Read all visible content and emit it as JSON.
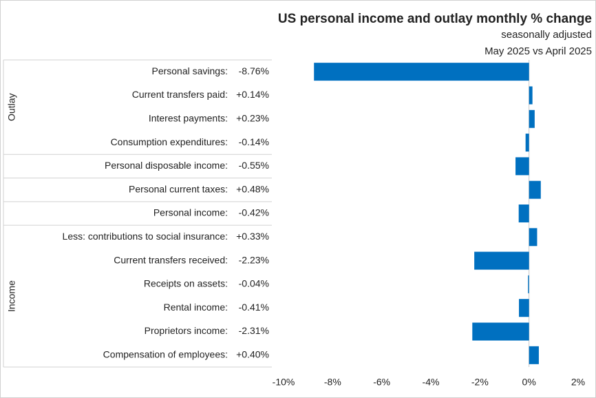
{
  "chart_data": {
    "type": "hbar",
    "title": "US personal income and outlay monthly % change",
    "subtitle": "seasonally adjusted",
    "period": "May 2025 vs April 2025",
    "categories": [
      "Personal savings:",
      "Current transfers paid:",
      "Interest payments:",
      "Consumption expenditures:",
      "Personal disposable income:",
      "Personal current taxes:",
      "Personal income:",
      "Less: contributions to social insurance:",
      "Current transfers received:",
      "Receipts on assets:",
      "Rental income:",
      "Proprietors income:",
      "Compensation of employees:"
    ],
    "groups": [
      "Outlay",
      "Outlay",
      "Outlay",
      "Outlay",
      null,
      null,
      null,
      "Income",
      "Income",
      "Income",
      "Income",
      "Income",
      "Income"
    ],
    "values": [
      -8.76,
      0.14,
      0.23,
      -0.14,
      -0.55,
      0.48,
      -0.42,
      0.33,
      -2.23,
      -0.04,
      -0.41,
      -2.31,
      0.4
    ],
    "value_labels": [
      "-8.76%",
      "+0.14%",
      "+0.23%",
      "-0.14%",
      "-0.55%",
      "+0.48%",
      "-0.42%",
      "+0.33%",
      "-2.23%",
      "-0.04%",
      "-0.41%",
      "-2.31%",
      "+0.40%"
    ],
    "color": "#0070c0",
    "xlim": [
      -10,
      2
    ],
    "xticks": [
      {
        "value": -10,
        "label": "-10%"
      },
      {
        "value": -8,
        "label": "-8%"
      },
      {
        "value": -6,
        "label": "-6%"
      },
      {
        "value": -4,
        "label": "-4%"
      },
      {
        "value": -2,
        "label": "-2%"
      },
      {
        "value": 0,
        "label": "0%"
      },
      {
        "value": 2,
        "label": "2%"
      }
    ]
  }
}
